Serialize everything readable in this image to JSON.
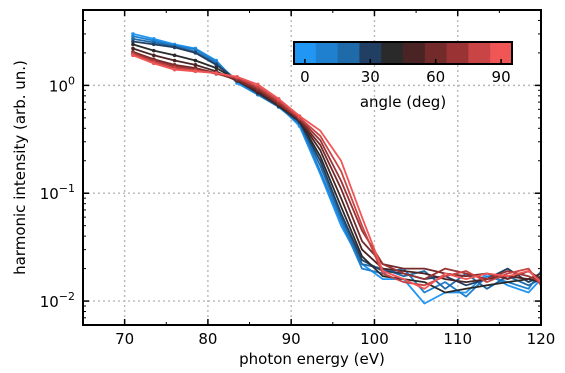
{
  "chart_data": {
    "type": "line",
    "xlabel": "photon energy (eV)",
    "ylabel": "harmonic intensity (arb. un.)",
    "xlim": [
      65,
      120
    ],
    "ylim": [
      0.006,
      5
    ],
    "yscale": "log",
    "grid": true,
    "xticks": [
      "70",
      "80",
      "90",
      "100",
      "110",
      "120"
    ],
    "yticks": [
      {
        "base": "10",
        "exp": "0"
      },
      {
        "base": "10",
        "exp": "−1"
      },
      {
        "base": "10",
        "exp": "−2"
      }
    ],
    "colorbar": {
      "label": "angle (deg)",
      "ticks": [
        "0",
        "30",
        "60",
        "90"
      ],
      "min": 0,
      "max": 90,
      "placement": "top-right",
      "colors": [
        "#2196f3",
        "#1f80d0",
        "#1f6aa8",
        "#213f63",
        "#2a2a2a",
        "#4a2424",
        "#732a2a",
        "#9a3434",
        "#c94444",
        "#f05656"
      ]
    },
    "x": [
      71,
      73.5,
      76,
      78.5,
      81,
      83.5,
      86,
      88.5,
      91,
      93.5,
      96,
      98.5,
      101,
      103.5,
      106,
      108.5,
      111,
      113.5,
      116,
      118.5,
      120
    ],
    "series": [
      {
        "angle": 0,
        "color": "#2196f3",
        "values": [
          3.0,
          2.7,
          2.4,
          2.2,
          1.7,
          1.05,
          0.82,
          0.65,
          0.42,
          0.15,
          0.05,
          0.022,
          0.016,
          0.016,
          0.0095,
          0.012,
          0.012,
          0.018,
          0.014,
          0.012,
          0.016
        ]
      },
      {
        "angle": 10,
        "color": "#1f80d0",
        "values": [
          2.85,
          2.6,
          2.35,
          2.15,
          1.65,
          1.1,
          0.82,
          0.63,
          0.44,
          0.16,
          0.055,
          0.02,
          0.018,
          0.02,
          0.012,
          0.015,
          0.011,
          0.017,
          0.015,
          0.013,
          0.019
        ]
      },
      {
        "angle": 20,
        "color": "#1f6aa8",
        "values": [
          2.7,
          2.5,
          2.3,
          2.05,
          1.6,
          1.1,
          0.83,
          0.64,
          0.45,
          0.18,
          0.06,
          0.022,
          0.02,
          0.017,
          0.019,
          0.013,
          0.018,
          0.013,
          0.017,
          0.014,
          0.016
        ]
      },
      {
        "angle": 30,
        "color": "#213f63",
        "values": [
          2.55,
          2.4,
          2.25,
          2.0,
          1.55,
          1.12,
          0.85,
          0.64,
          0.46,
          0.2,
          0.065,
          0.024,
          0.019,
          0.018,
          0.016,
          0.017,
          0.014,
          0.016,
          0.02,
          0.015,
          0.017
        ]
      },
      {
        "angle": 40,
        "color": "#2a2a2a",
        "values": [
          2.4,
          2.1,
          1.9,
          1.7,
          1.45,
          1.12,
          0.86,
          0.65,
          0.47,
          0.22,
          0.075,
          0.026,
          0.017,
          0.016,
          0.015,
          0.012,
          0.013,
          0.014,
          0.015,
          0.016,
          0.015
        ]
      },
      {
        "angle": 50,
        "color": "#4a2424",
        "values": [
          2.2,
          1.9,
          1.7,
          1.55,
          1.35,
          1.1,
          0.87,
          0.66,
          0.48,
          0.25,
          0.09,
          0.03,
          0.02,
          0.019,
          0.018,
          0.016,
          0.015,
          0.016,
          0.017,
          0.016,
          0.018
        ]
      },
      {
        "angle": 60,
        "color": "#732a2a",
        "values": [
          2.05,
          1.75,
          1.55,
          1.45,
          1.3,
          1.12,
          0.9,
          0.67,
          0.48,
          0.28,
          0.11,
          0.036,
          0.022,
          0.02,
          0.02,
          0.018,
          0.017,
          0.018,
          0.016,
          0.019,
          0.016
        ]
      },
      {
        "angle": 70,
        "color": "#9a3434",
        "values": [
          2.0,
          1.7,
          1.5,
          1.4,
          1.28,
          1.15,
          0.93,
          0.69,
          0.49,
          0.31,
          0.13,
          0.045,
          0.022,
          0.018,
          0.016,
          0.02,
          0.018,
          0.016,
          0.019,
          0.017,
          0.015
        ]
      },
      {
        "angle": 80,
        "color": "#c94444",
        "values": [
          1.95,
          1.65,
          1.45,
          1.38,
          1.3,
          1.18,
          0.97,
          0.72,
          0.5,
          0.34,
          0.16,
          0.05,
          0.018,
          0.015,
          0.014,
          0.017,
          0.019,
          0.015,
          0.018,
          0.02,
          0.014
        ]
      },
      {
        "angle": 90,
        "color": "#f05656",
        "values": [
          1.9,
          1.6,
          1.4,
          1.35,
          1.3,
          1.2,
          1.02,
          0.75,
          0.52,
          0.38,
          0.2,
          0.06,
          0.019,
          0.016,
          0.013,
          0.018,
          0.016,
          0.018,
          0.017,
          0.019,
          0.015
        ]
      }
    ]
  }
}
